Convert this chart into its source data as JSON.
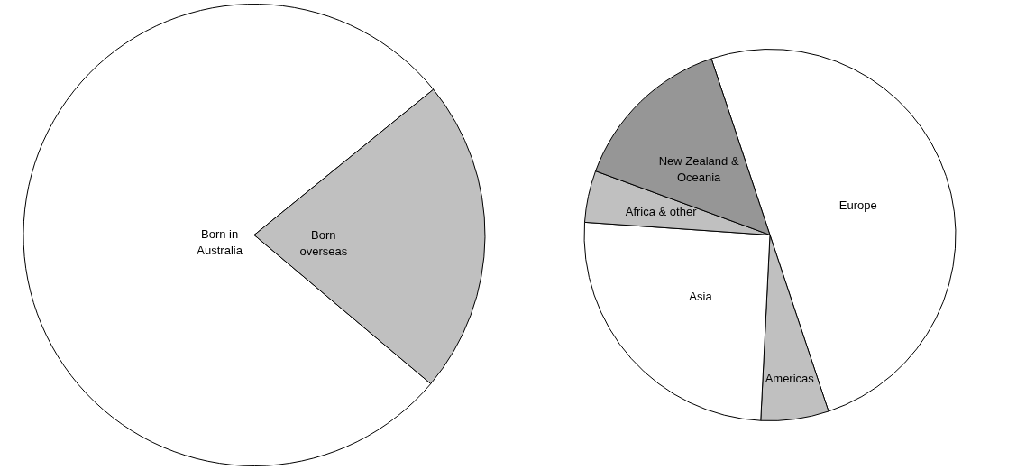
{
  "chart_data": [
    {
      "type": "pie",
      "categories": [
        "Born in Australia",
        "Born overseas"
      ],
      "values": [
        78,
        22
      ],
      "colors": [
        "#ffffff",
        "#c0c0c0"
      ]
    },
    {
      "type": "pie",
      "categories": [
        "Europe",
        "Americas",
        "Asia",
        "Africa & other",
        "New Zealand & Oceania"
      ],
      "values": [
        50,
        5.9,
        25.3,
        4.5,
        14.3
      ],
      "colors": [
        "#ffffff",
        "#c0c0c0",
        "#ffffff",
        "#c0c0c0",
        "#969696"
      ]
    }
  ]
}
